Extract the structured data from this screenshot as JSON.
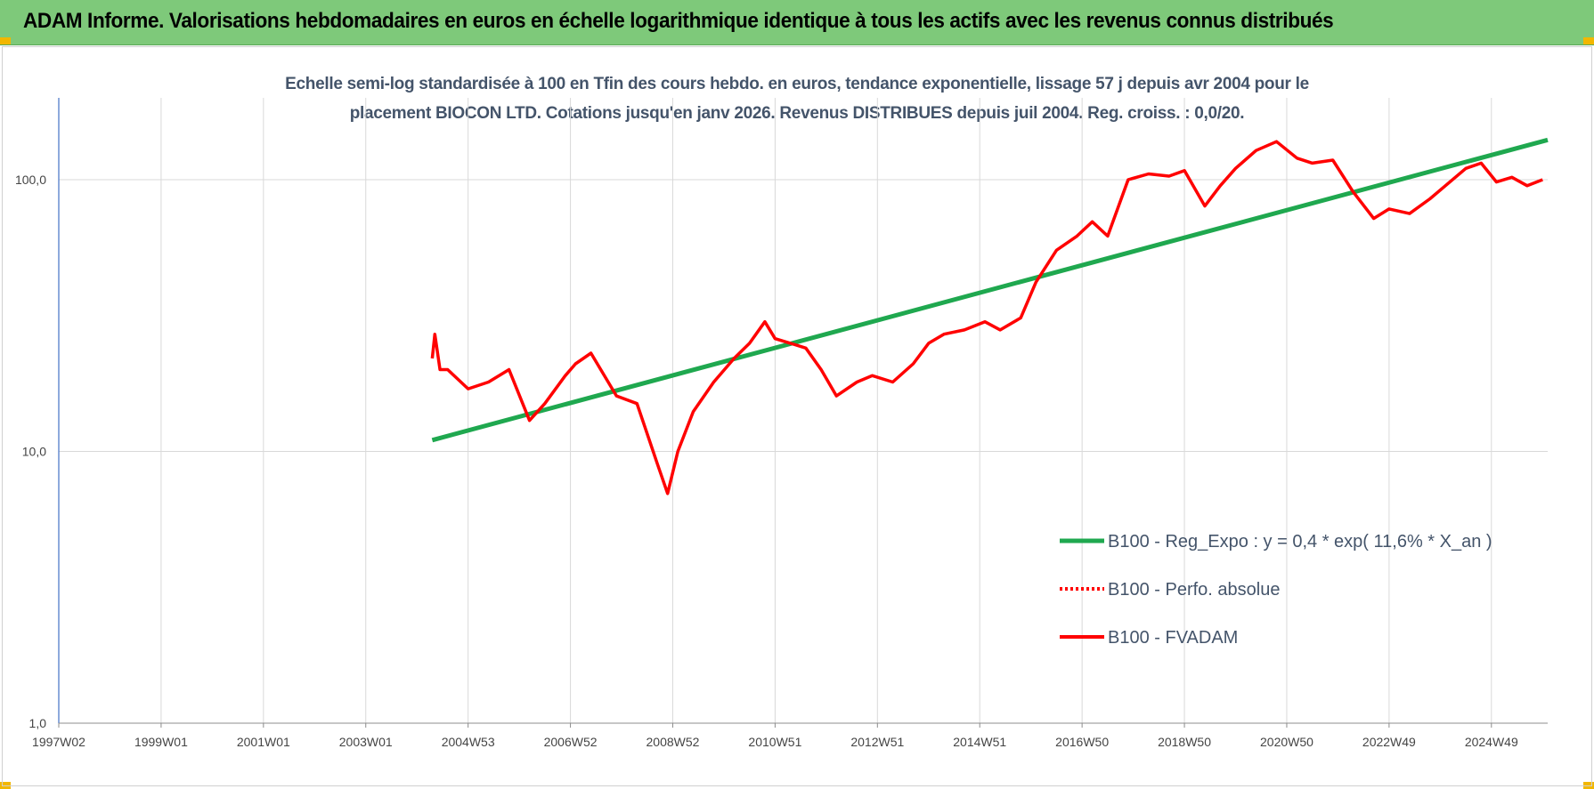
{
  "header": {
    "title": "ADAM Informe. Valorisations hebdomadaires en euros en échelle logarithmique identique à tous les actifs avec les revenus connus distribués"
  },
  "chart_data": {
    "type": "line",
    "title_line1": "Echelle semi-log standardisée à 100 en Tfin des cours hebdo. en euros, tendance exponentielle, lissage 57 j depuis avr 2004 pour le",
    "title_line2": "placement BIOCON LTD. Cotations jusqu'en janv 2026. Revenus DISTRIBUES depuis juil 2004. Reg. croiss. : 0,0/20.",
    "y_scale": "log",
    "ylim": [
      1,
      200
    ],
    "xlim": [
      1997.0,
      2026.1
    ],
    "y_ticks": [
      1,
      10,
      100
    ],
    "y_tick_labels": [
      "1,0",
      "10,0",
      "100,0"
    ],
    "x_ticks": [
      1997.0,
      1999.0,
      2001.0,
      2003.0,
      2005.0,
      2007.0,
      2009.0,
      2011.0,
      2013.0,
      2015.0,
      2017.0,
      2019.0,
      2021.0,
      2023.0,
      2025.0
    ],
    "x_tick_labels": [
      "1997W02",
      "1999W01",
      "2001W01",
      "2003W01",
      "2004W53",
      "2006W52",
      "2008W52",
      "2010W51",
      "2012W51",
      "2014W51",
      "2016W50",
      "2018W50",
      "2020W50",
      "2022W49",
      "2024W49"
    ],
    "grid": "vertical and horizontal",
    "legend_position": "bottom-right",
    "series": [
      {
        "name": "B100 - Reg_Expo : y = 0,4 * exp( 11,6% *  X_an )",
        "color": "#1fa84f",
        "style": "solid",
        "x": [
          2004.3,
          2026.1
        ],
        "y": [
          11.0,
          140.0
        ]
      },
      {
        "name": "B100 - Perfo. absolue",
        "color": "#ff0000",
        "style": "dotted",
        "x": [],
        "y": []
      },
      {
        "name": "B100 - FVADAM",
        "color": "#ff0000",
        "style": "solid",
        "x": [
          2004.3,
          2004.35,
          2004.45,
          2004.6,
          2005.0,
          2005.4,
          2005.8,
          2006.2,
          2006.5,
          2006.9,
          2007.1,
          2007.4,
          2007.9,
          2008.3,
          2008.7,
          2008.9,
          2009.1,
          2009.4,
          2009.8,
          2010.2,
          2010.5,
          2010.8,
          2011.0,
          2011.3,
          2011.6,
          2011.9,
          2012.2,
          2012.6,
          2012.9,
          2013.3,
          2013.7,
          2014.0,
          2014.3,
          2014.7,
          2015.1,
          2015.4,
          2015.8,
          2016.1,
          2016.5,
          2016.9,
          2017.2,
          2017.5,
          2017.9,
          2018.3,
          2018.7,
          2019.0,
          2019.4,
          2019.7,
          2020.0,
          2020.4,
          2020.8,
          2021.2,
          2021.5,
          2021.9,
          2022.3,
          2022.7,
          2023.0,
          2023.4,
          2023.8,
          2024.1,
          2024.5,
          2024.8,
          2025.1,
          2025.4,
          2025.7,
          2026.0
        ],
        "y": [
          22,
          27,
          20,
          20,
          17,
          18,
          20,
          13,
          15,
          19,
          21,
          23,
          16,
          15,
          9,
          7,
          10,
          14,
          18,
          22,
          25,
          30,
          26,
          25,
          24,
          20,
          16,
          18,
          19,
          18,
          21,
          25,
          27,
          28,
          30,
          28,
          31,
          42,
          55,
          62,
          70,
          62,
          100,
          105,
          103,
          108,
          80,
          95,
          110,
          128,
          138,
          120,
          115,
          118,
          90,
          72,
          78,
          75,
          85,
          95,
          110,
          115,
          98,
          102,
          95,
          100
        ]
      }
    ]
  }
}
